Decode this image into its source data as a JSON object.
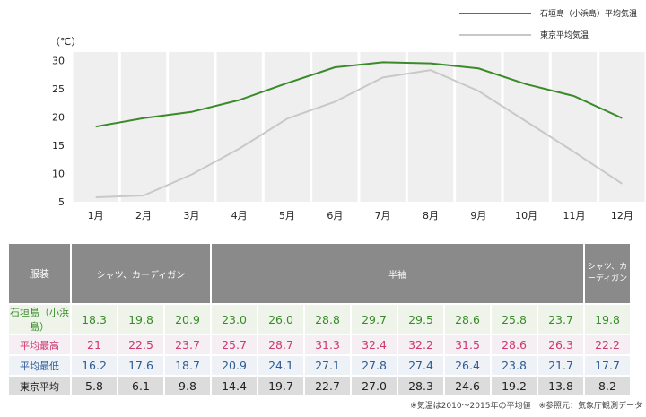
{
  "chart_data": {
    "type": "line",
    "unit_label": "（℃）",
    "categories": [
      "1月",
      "2月",
      "3月",
      "4月",
      "5月",
      "6月",
      "7月",
      "8月",
      "9月",
      "10月",
      "11月",
      "12月"
    ],
    "yticks": [
      5,
      10,
      15,
      20,
      25,
      30
    ],
    "ylim": [
      5,
      30
    ],
    "series": [
      {
        "name": "石垣島（小浜島）平均気温",
        "color": "#3a8a2a",
        "values": [
          18.3,
          19.8,
          20.9,
          23.0,
          26.0,
          28.8,
          29.7,
          29.5,
          28.6,
          25.8,
          23.7,
          19.8
        ]
      },
      {
        "name": "東京平均気温",
        "color": "#c8c8c8",
        "values": [
          5.8,
          6.1,
          9.8,
          14.4,
          19.7,
          22.7,
          27.0,
          28.3,
          24.6,
          19.2,
          13.8,
          8.2
        ]
      }
    ]
  },
  "table": {
    "clothing_label": "服装",
    "clothing": [
      {
        "label": "シャツ、カーディガン",
        "months": 3
      },
      {
        "label": "半袖",
        "months": 8
      },
      {
        "label": "シャツ、カーディガン",
        "months": 1
      }
    ],
    "rows": [
      {
        "label": "石垣島（小浜島）",
        "values": [
          "18.3",
          "19.8",
          "20.9",
          "23.0",
          "26.0",
          "28.8",
          "29.7",
          "29.5",
          "28.6",
          "25.8",
          "23.7",
          "19.8"
        ]
      },
      {
        "label": "平均最高",
        "values": [
          "21",
          "22.5",
          "23.7",
          "25.7",
          "28.7",
          "31.3",
          "32.4",
          "32.2",
          "31.5",
          "28.6",
          "26.3",
          "22.2"
        ]
      },
      {
        "label": "平均最低",
        "values": [
          "16.2",
          "17.6",
          "18.7",
          "20.9",
          "24.1",
          "27.1",
          "27.8",
          "27.4",
          "26.4",
          "23.8",
          "21.7",
          "17.7"
        ]
      },
      {
        "label": "東京平均",
        "values": [
          "5.8",
          "6.1",
          "9.8",
          "14.4",
          "19.7",
          "22.7",
          "27.0",
          "28.3",
          "24.6",
          "19.2",
          "13.8",
          "8.2"
        ]
      }
    ]
  },
  "footnote": "※気温は2010〜2015年の平均値　※参照元：気象庁観測データ"
}
